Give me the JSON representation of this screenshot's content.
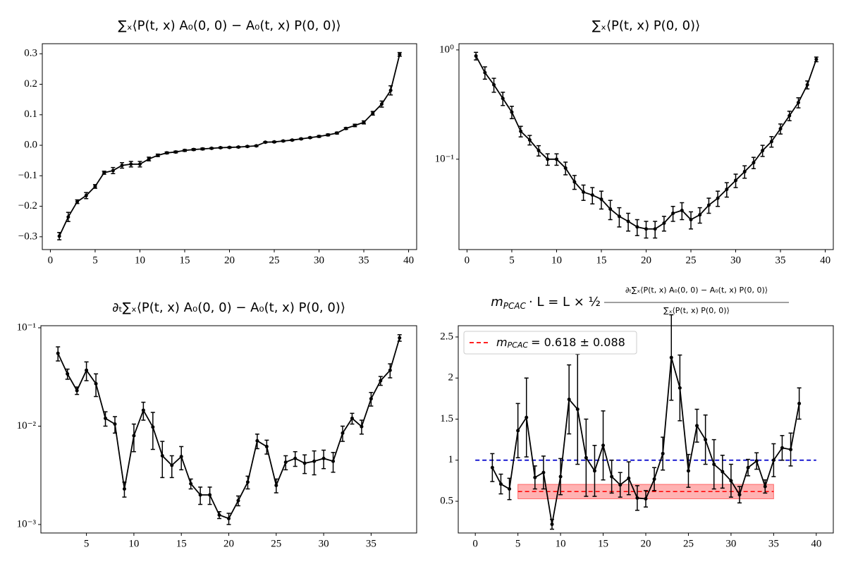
{
  "chart_data": [
    {
      "type": "line",
      "title": "∑ₓ⟨P(t, x) A₀(0, 0) − A₀(t, x) P(0, 0)⟩",
      "x": [
        1,
        2,
        3,
        4,
        5,
        6,
        7,
        8,
        9,
        10,
        11,
        12,
        13,
        14,
        15,
        16,
        17,
        18,
        19,
        20,
        21,
        22,
        23,
        24,
        25,
        26,
        27,
        28,
        29,
        30,
        31,
        32,
        33,
        34,
        35,
        36,
        37,
        38,
        39
      ],
      "values": [
        -0.298,
        -0.235,
        -0.185,
        -0.165,
        -0.135,
        -0.09,
        -0.083,
        -0.066,
        -0.062,
        -0.062,
        -0.045,
        -0.033,
        -0.025,
        -0.022,
        -0.017,
        -0.014,
        -0.012,
        -0.01,
        -0.008,
        -0.007,
        -0.006,
        -0.004,
        -0.002,
        0.01,
        0.011,
        0.014,
        0.017,
        0.021,
        0.025,
        0.029,
        0.034,
        0.04,
        0.055,
        0.065,
        0.075,
        0.105,
        0.135,
        0.18,
        0.298
      ],
      "errors": [
        0.012,
        0.015,
        0.006,
        0.01,
        0.006,
        0.005,
        0.01,
        0.009,
        0.009,
        0.009,
        0.006,
        0.004,
        0.003,
        0.003,
        0.003,
        0.003,
        0.003,
        0.002,
        0.002,
        0.002,
        0.002,
        0.002,
        0.002,
        0.002,
        0.002,
        0.002,
        0.002,
        0.002,
        0.002,
        0.003,
        0.003,
        0.003,
        0.003,
        0.004,
        0.005,
        0.006,
        0.01,
        0.015,
        0.006
      ],
      "color": "#000000",
      "log_y": false,
      "xlim": [
        -0.9,
        40.9
      ],
      "xticks": [
        0,
        5,
        10,
        15,
        20,
        25,
        30,
        35,
        40
      ],
      "ylim": [
        -0.342,
        0.333
      ],
      "yticks": [
        {
          "value": -0.3,
          "label": "−0.3"
        },
        {
          "value": -0.2,
          "label": "−0.2"
        },
        {
          "value": -0.1,
          "label": "−0.1"
        },
        {
          "value": 0,
          "label": "0.0"
        },
        0.1,
        0.2,
        0.3
      ]
    },
    {
      "type": "line",
      "title": "∑ₓ⟨P(t, x) P(0, 0)⟩",
      "x": [
        1,
        2,
        3,
        4,
        5,
        6,
        7,
        8,
        9,
        10,
        11,
        12,
        13,
        14,
        15,
        16,
        17,
        18,
        19,
        20,
        21,
        22,
        23,
        24,
        25,
        26,
        27,
        28,
        29,
        30,
        31,
        32,
        33,
        34,
        35,
        36,
        37,
        38,
        39
      ],
      "values": [
        0.88,
        0.62,
        0.48,
        0.36,
        0.27,
        0.18,
        0.15,
        0.12,
        0.1,
        0.1,
        0.083,
        0.062,
        0.05,
        0.047,
        0.043,
        0.035,
        0.03,
        0.027,
        0.024,
        0.023,
        0.023,
        0.026,
        0.032,
        0.034,
        0.028,
        0.031,
        0.038,
        0.044,
        0.053,
        0.064,
        0.077,
        0.093,
        0.12,
        0.145,
        0.19,
        0.25,
        0.33,
        0.48,
        0.82
      ],
      "errors": [
        0.07,
        0.08,
        0.07,
        0.05,
        0.035,
        0.02,
        0.015,
        0.013,
        0.012,
        0.012,
        0.011,
        0.009,
        0.008,
        0.008,
        0.008,
        0.007,
        0.006,
        0.005,
        0.004,
        0.004,
        0.004,
        0.004,
        0.005,
        0.006,
        0.005,
        0.005,
        0.006,
        0.007,
        0.008,
        0.009,
        0.01,
        0.011,
        0.014,
        0.016,
        0.02,
        0.025,
        0.035,
        0.04,
        0.04
      ],
      "color": "#000000",
      "log_y": true,
      "xlim": [
        -0.9,
        40.9
      ],
      "xticks": [
        0,
        5,
        10,
        15,
        20,
        25,
        30,
        35,
        40
      ],
      "ylim": [
        0.0149,
        1.14
      ],
      "yticks": [
        {
          "value": 0.1,
          "label": "10⁻¹"
        },
        {
          "value": 1,
          "label": "10⁰"
        }
      ]
    },
    {
      "type": "line",
      "title": "∂ₜ∑ₓ⟨P(t, x) A₀(0, 0) − A₀(t, x) P(0, 0)⟩",
      "x": [
        2,
        3,
        4,
        5,
        6,
        7,
        8,
        9,
        10,
        11,
        12,
        13,
        14,
        15,
        16,
        17,
        18,
        19,
        20,
        21,
        22,
        23,
        24,
        25,
        26,
        27,
        28,
        29,
        30,
        31,
        32,
        33,
        34,
        35,
        36,
        37,
        38
      ],
      "values": [
        0.055,
        0.034,
        0.023,
        0.037,
        0.027,
        0.012,
        0.0105,
        0.0023,
        0.008,
        0.0145,
        0.0098,
        0.005,
        0.004,
        0.0049,
        0.0026,
        0.002,
        0.002,
        0.00125,
        0.00115,
        0.00175,
        0.0027,
        0.0071,
        0.0062,
        0.0025,
        0.0043,
        0.0047,
        0.0042,
        0.0044,
        0.0047,
        0.0044,
        0.0085,
        0.012,
        0.0099,
        0.019,
        0.029,
        0.037,
        0.079
      ],
      "errors": [
        0.009,
        0.004,
        0.002,
        0.008,
        0.007,
        0.002,
        0.002,
        0.0004,
        0.0025,
        0.003,
        0.004,
        0.002,
        0.001,
        0.0013,
        0.0003,
        0.0004,
        0.0004,
        0.0001,
        0.00015,
        0.0002,
        0.0004,
        0.0012,
        0.001,
        0.0004,
        0.0007,
        0.0008,
        0.0009,
        0.0012,
        0.001,
        0.001,
        0.0015,
        0.0015,
        0.0016,
        0.003,
        0.003,
        0.006,
        0.006
      ],
      "color": "#000000",
      "log_y": true,
      "xlim": [
        0.2,
        39.8
      ],
      "xticks": [
        5,
        10,
        15,
        20,
        25,
        30,
        35
      ],
      "ylim": [
        0.00082,
        0.105
      ],
      "yticks": [
        {
          "value": 0.001,
          "label": "10⁻³"
        },
        {
          "value": 0.01,
          "label": "10⁻²"
        },
        {
          "value": 0.1,
          "label": "10⁻¹"
        }
      ]
    },
    {
      "type": "line",
      "title": {
        "symbol": "m",
        "subscript": "PCAC",
        "equation": "· L = L × ½",
        "numerator": "∂ₜ∑ₓ⟨P(t, x) A₀(0, 0) − A₀(t, x) P(0, 0)⟩",
        "denominator": "∑ₓ⟨P(t, x) P(0, 0)⟩"
      },
      "x": [
        2,
        3,
        4,
        5,
        6,
        7,
        8,
        9,
        10,
        11,
        12,
        13,
        14,
        15,
        16,
        17,
        18,
        19,
        20,
        21,
        22,
        23,
        24,
        25,
        26,
        27,
        28,
        29,
        30,
        31,
        32,
        33,
        34,
        35,
        36,
        37,
        38
      ],
      "values": [
        0.91,
        0.71,
        0.65,
        1.36,
        1.52,
        0.79,
        0.85,
        0.22,
        0.8,
        1.74,
        1.62,
        1.03,
        0.87,
        1.18,
        0.8,
        0.7,
        0.78,
        0.54,
        0.53,
        0.77,
        1.08,
        2.25,
        1.88,
        0.87,
        1.42,
        1.25,
        0.95,
        0.86,
        0.75,
        0.58,
        0.91,
        0.99,
        0.68,
        1.0,
        1.15,
        1.13,
        1.69
      ],
      "errors": [
        0.17,
        0.12,
        0.13,
        0.33,
        0.48,
        0.14,
        0.2,
        0.06,
        0.22,
        0.42,
        0.67,
        0.47,
        0.31,
        0.42,
        0.2,
        0.15,
        0.2,
        0.15,
        0.1,
        0.14,
        0.2,
        0.52,
        0.4,
        0.2,
        0.2,
        0.3,
        0.3,
        0.2,
        0.2,
        0.1,
        0.1,
        0.1,
        0.08,
        0.2,
        0.15,
        0.2,
        0.19
      ],
      "color": "#000000",
      "log_y": false,
      "xlim": [
        -2,
        42
      ],
      "xticks": [
        0,
        5,
        10,
        15,
        20,
        25,
        30,
        35,
        40
      ],
      "ylim": [
        0.114,
        2.637
      ],
      "yticks": [
        0.5,
        1.0,
        1.5,
        2.0,
        2.5
      ],
      "fit": {
        "symbol": "m",
        "subscript": "PCAC",
        "text": "= 0.618 ± 0.088",
        "value": 0.618,
        "error": 0.088,
        "x": [
          5,
          35
        ],
        "color": "#ff0000"
      },
      "reference": {
        "value": 1.0,
        "x": [
          0,
          40
        ],
        "color": "#0000cc"
      },
      "legend": "upper left"
    }
  ]
}
